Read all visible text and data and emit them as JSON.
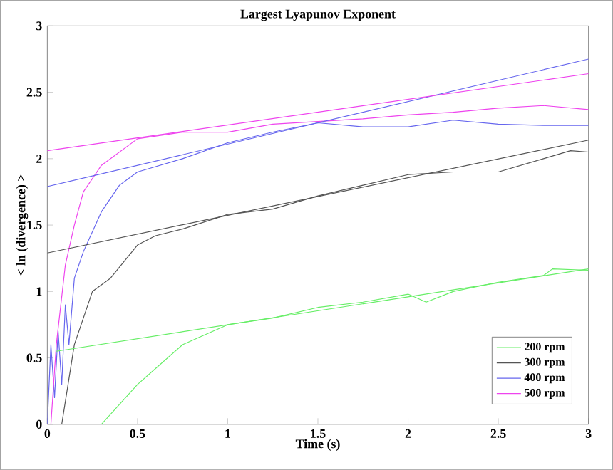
{
  "chart_data": {
    "type": "line",
    "title": "Largest Lyapunov Exponent",
    "xlabel": "Time (s)",
    "ylabel": "< ln (divergence) >",
    "xlim": [
      0,
      3
    ],
    "ylim": [
      0,
      3
    ],
    "xticks": [
      0,
      0.5,
      1,
      1.5,
      2,
      2.5,
      3
    ],
    "yticks": [
      0,
      0.5,
      1,
      1.5,
      2,
      2.5,
      3
    ],
    "legend": "bottom right",
    "grid": false,
    "marker": "none",
    "line_style": "solid",
    "series": [
      {
        "name": "200 rpm",
        "color": "#66ee66",
        "x": [
          0.3,
          0.4,
          0.5,
          0.6,
          0.75,
          0.85,
          1,
          1.25,
          1.5,
          1.75,
          2,
          2.1,
          2.25,
          2.5,
          2.75,
          2.8,
          3
        ],
        "values": [
          0,
          0.15,
          0.3,
          0.42,
          0.6,
          0.66,
          0.75,
          0.8,
          0.88,
          0.92,
          0.98,
          0.92,
          1.0,
          1.07,
          1.12,
          1.17,
          1.16
        ]
      },
      {
        "name": "300 rpm",
        "color": "#555555",
        "x": [
          0.08,
          0.15,
          0.25,
          0.35,
          0.5,
          0.6,
          0.75,
          1,
          1.25,
          1.5,
          1.75,
          2,
          2.25,
          2.5,
          2.75,
          2.9,
          3
        ],
        "values": [
          0,
          0.6,
          1.0,
          1.1,
          1.35,
          1.42,
          1.47,
          1.58,
          1.62,
          1.72,
          1.8,
          1.88,
          1.9,
          1.9,
          2.0,
          2.06,
          2.05
        ]
      },
      {
        "name": "400 rpm",
        "color": "#6666ee",
        "x": [
          0,
          0.02,
          0.04,
          0.06,
          0.08,
          0.1,
          0.12,
          0.15,
          0.2,
          0.3,
          0.4,
          0.5,
          0.75,
          1,
          1.25,
          1.5,
          1.75,
          2,
          2.25,
          2.5,
          2.75,
          3
        ],
        "values": [
          0,
          0.6,
          0.2,
          0.7,
          0.3,
          0.9,
          0.6,
          1.1,
          1.3,
          1.6,
          1.8,
          1.9,
          2.0,
          2.12,
          2.2,
          2.27,
          2.24,
          2.24,
          2.29,
          2.26,
          2.25,
          2.25
        ]
      },
      {
        "name": "500 rpm",
        "color": "#ee44ee",
        "x": [
          0.02,
          0.05,
          0.1,
          0.15,
          0.2,
          0.3,
          0.5,
          0.75,
          1,
          1.25,
          1.5,
          1.75,
          2,
          2.25,
          2.5,
          2.75,
          3
        ],
        "values": [
          0,
          0.6,
          1.2,
          1.5,
          1.75,
          1.95,
          2.15,
          2.2,
          2.2,
          2.26,
          2.28,
          2.3,
          2.33,
          2.35,
          2.38,
          2.4,
          2.37
        ]
      },
      {
        "color": "#66ee66",
        "x": [
          0.05,
          3
        ],
        "values": [
          0.55,
          1.17
        ]
      },
      {
        "color": "#555555",
        "x": [
          0,
          3
        ],
        "values": [
          1.29,
          2.14
        ]
      },
      {
        "color": "#6666ee",
        "x": [
          0,
          3
        ],
        "values": [
          1.79,
          2.75
        ]
      },
      {
        "color": "#ee44ee",
        "x": [
          0,
          3
        ],
        "values": [
          2.06,
          2.64
        ]
      }
    ]
  }
}
